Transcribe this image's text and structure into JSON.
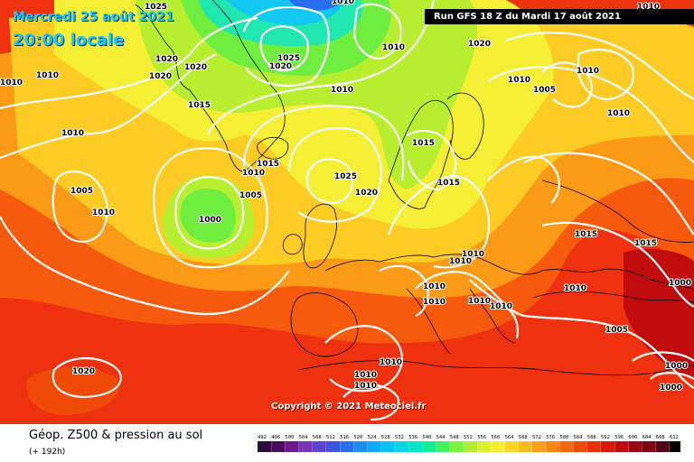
{
  "header": {
    "date": "Mercredi 25 août 2021",
    "time": "20:00 locale",
    "run": "Run GFS 18 Z du Mardi 17 août 2021"
  },
  "copyright": "Copyright © 2021 Meteociel.fr",
  "footer": {
    "title": "Géop. Z500 & pression au sol",
    "subtitle": "(+ 192h)"
  },
  "scale": {
    "values": [
      "492",
      "496",
      "500",
      "504",
      "508",
      "512",
      "516",
      "520",
      "524",
      "528",
      "532",
      "536",
      "540",
      "544",
      "548",
      "552",
      "556",
      "560",
      "564",
      "568",
      "572",
      "576",
      "580",
      "584",
      "588",
      "592",
      "596",
      "600",
      "604",
      "608",
      "612"
    ],
    "colors": [
      "#2a0a3a",
      "#4a0d5e",
      "#6b1a8c",
      "#7a35b6",
      "#5a45d0",
      "#3b55e0",
      "#2a6ef0",
      "#1e8cf5",
      "#10a8f8",
      "#08c3f5",
      "#00d8e8",
      "#00e6c8",
      "#10ee98",
      "#40f060",
      "#7af040",
      "#b0f030",
      "#dcf030",
      "#f6ee30",
      "#fbd628",
      "#fcbc20",
      "#fca018",
      "#fa8412",
      "#f6680c",
      "#f04a08",
      "#e83006",
      "#d81a08",
      "#c00c0c",
      "#9c0610",
      "#7a0410",
      "#520210",
      "#000000"
    ]
  },
  "isobars": [
    "1025",
    "1020",
    "1020",
    "1015",
    "1010",
    "1010",
    "1010",
    "1020",
    "1025",
    "1020",
    "1010",
    "1010",
    "1025",
    "1020",
    "1005",
    "1010",
    "1015",
    "1015",
    "1020",
    "1010",
    "1010",
    "1015",
    "1015",
    "1005",
    "1010",
    "1000",
    "1025",
    "1020",
    "1005",
    "1010",
    "1010",
    "1010",
    "1010",
    "1010",
    "1015",
    "1015",
    "1010",
    "1010",
    "1010",
    "1010",
    "1010",
    "1010",
    "1010",
    "1005",
    "1000",
    "1000",
    "1020",
    "1010",
    "1010",
    "1020",
    "1000"
  ]
}
